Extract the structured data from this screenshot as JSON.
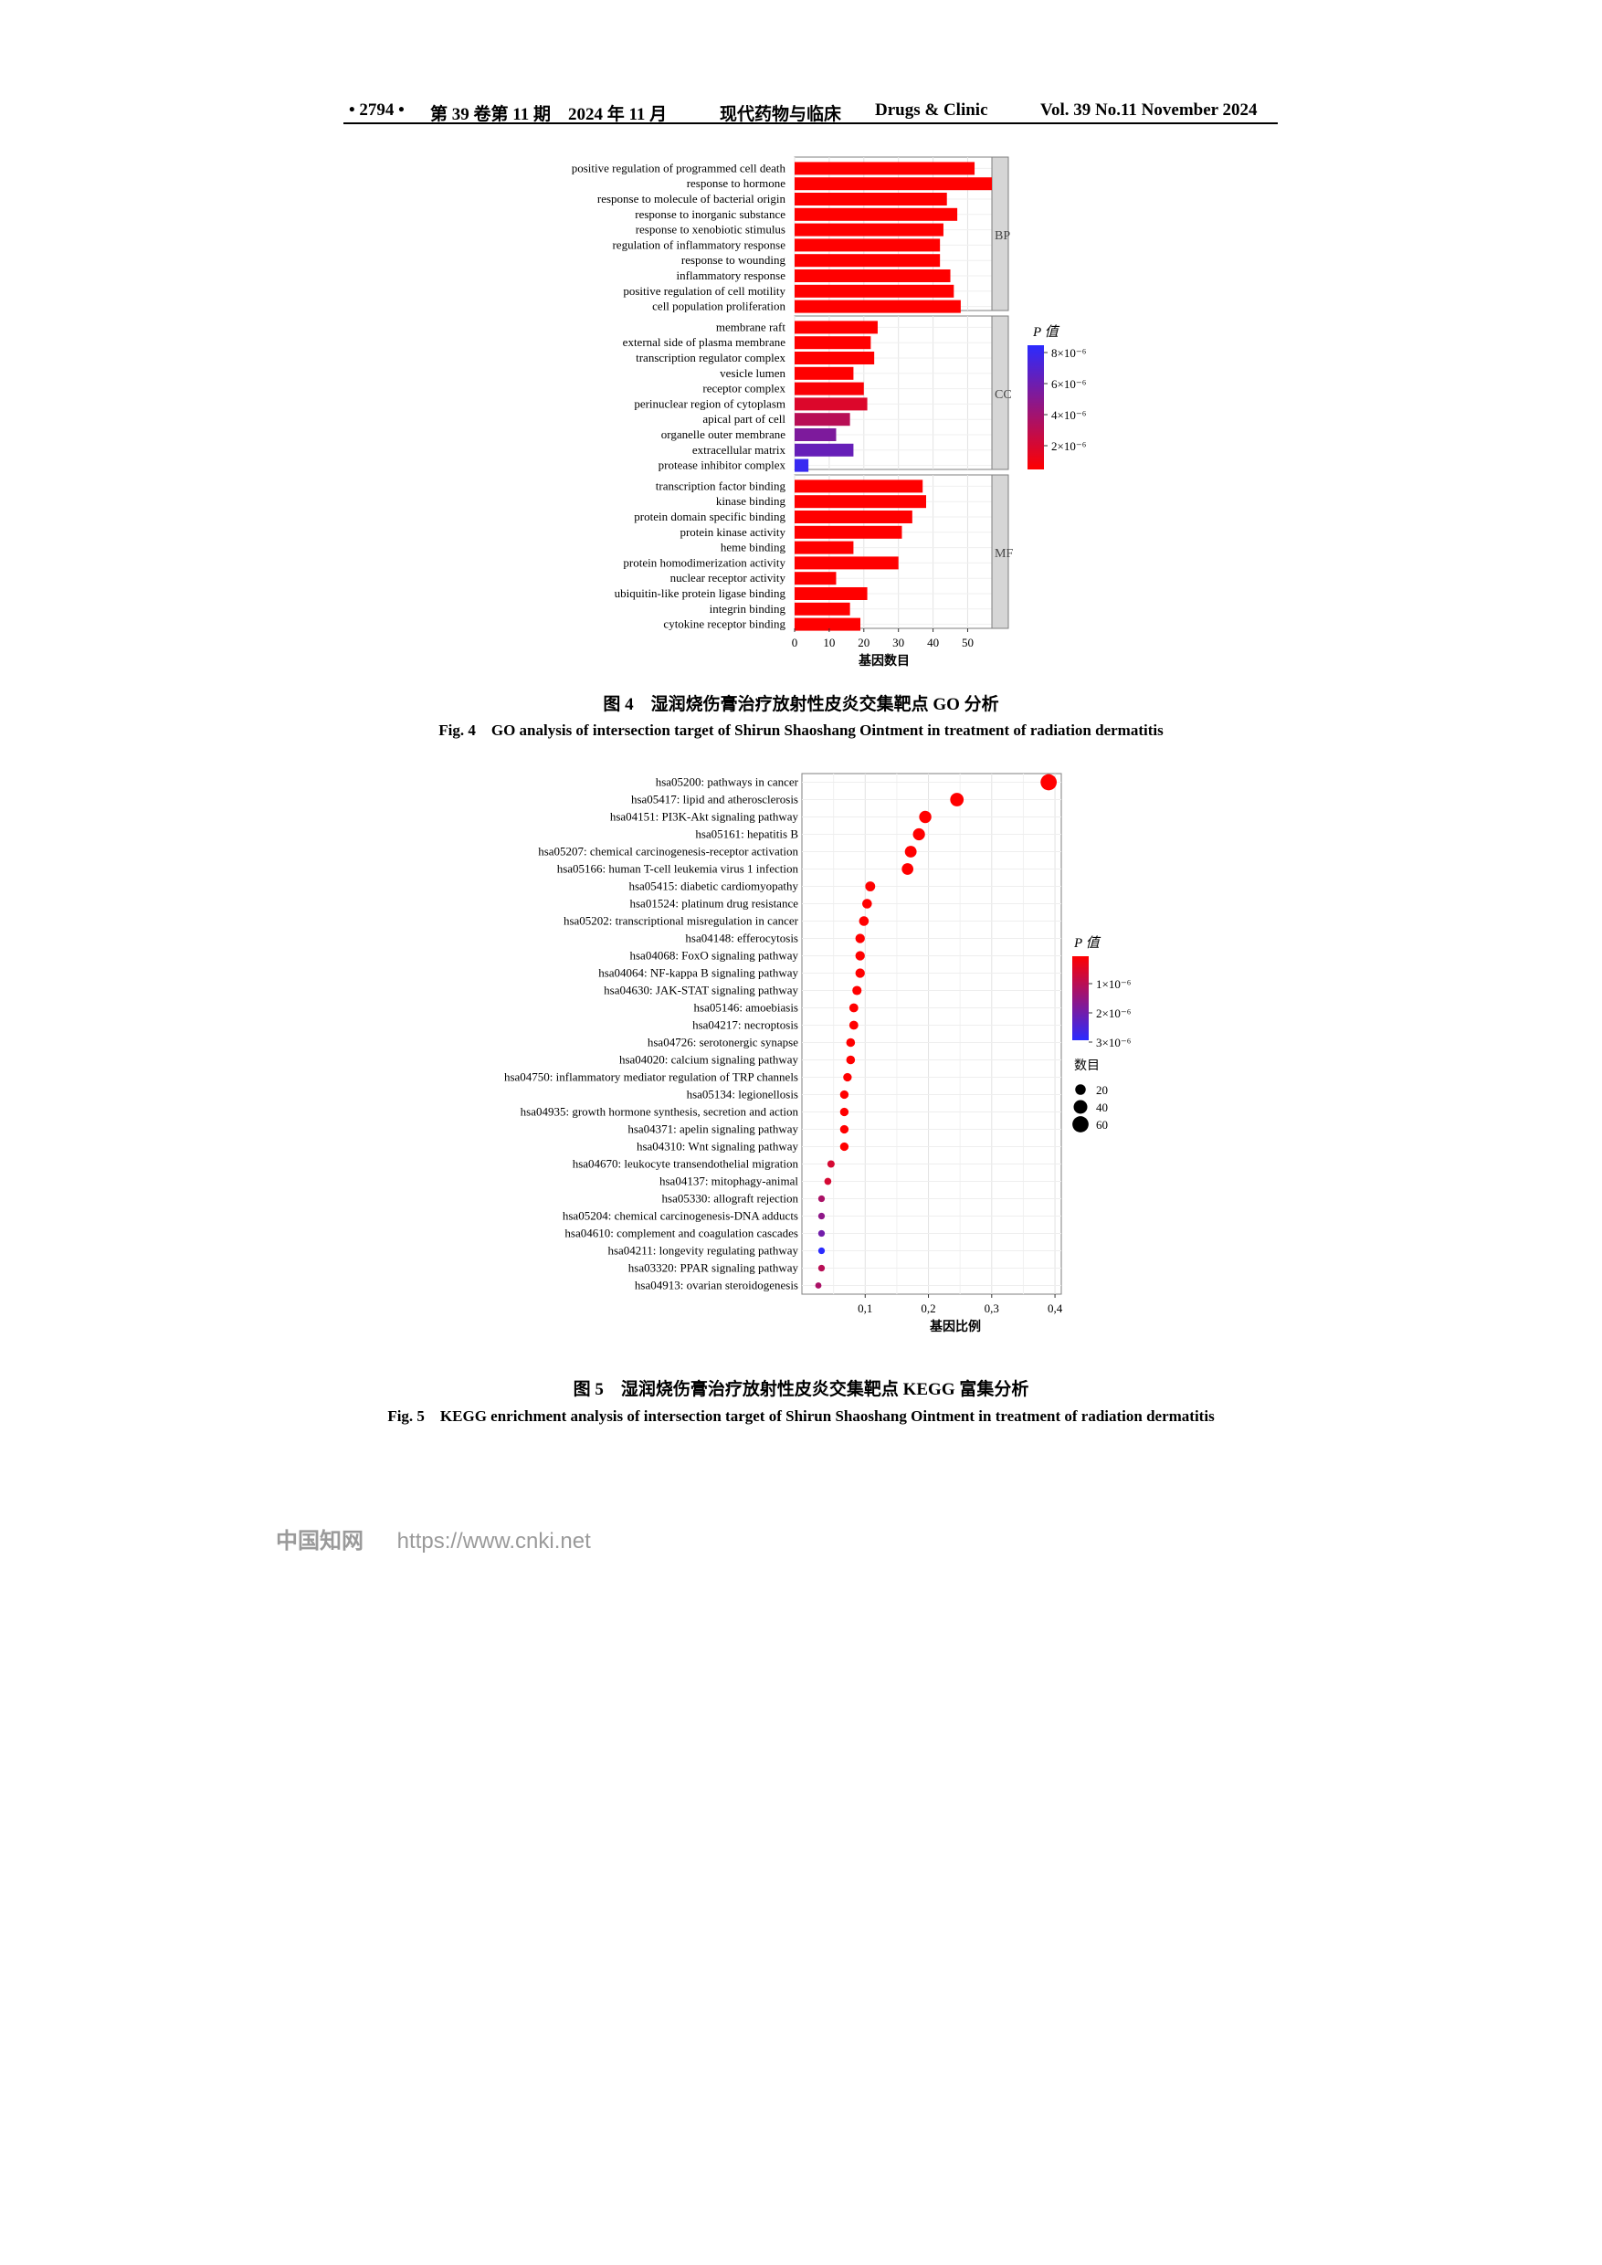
{
  "header": {
    "page": "• 2794 •",
    "issue_zh": "第 39 卷第 11 期　2024 年 11 月",
    "journal_zh": "现代药物与临床",
    "journal_en": "Drugs & Clinic",
    "issue_en": "Vol. 39 No.11 November 2024"
  },
  "figure4": {
    "caption_zh": "图 4　湿润烧伤膏治疗放射性皮炎交集靶点 GO 分析",
    "caption_en": "Fig. 4　GO analysis of intersection target of Shirun Shaoshang Ointment in treatment of radiation dermatitis"
  },
  "figure5": {
    "caption_zh": "图 5　湿润烧伤膏治疗放射性皮炎交集靶点 KEGG 富集分析",
    "caption_en": "Fig. 5　KEGG enrichment analysis of intersection target of Shirun Shaoshang Ointment in treatment of radiation dermatitis"
  },
  "footer": {
    "brand": "中国知网",
    "url": "https://www.cnki.net"
  },
  "chart_data": [
    {
      "type": "bar",
      "orientation": "horizontal",
      "xlabel": "基因数目",
      "xlim": [
        0,
        57
      ],
      "xticks": [
        0,
        10,
        20,
        30,
        40,
        50
      ],
      "grid": true,
      "legend": {
        "title": "P 值",
        "placement": "right",
        "ticks": [
          "8×10⁻⁶",
          "6×10⁻⁶",
          "4×10⁻⁶",
          "2×10⁻⁶"
        ]
      },
      "colors": {
        "low": "#ff0000",
        "high": "#2b2bff"
      },
      "facets": [
        {
          "name": "BP",
          "bars": [
            {
              "label": "positive regulation of programmed cell death",
              "value": 52,
              "p": 0
            },
            {
              "label": "response to hormone",
              "value": 57,
              "p": 0
            },
            {
              "label": "response to molecule of bacterial origin",
              "value": 44,
              "p": 0
            },
            {
              "label": "response to inorganic substance",
              "value": 47,
              "p": 0
            },
            {
              "label": "response to xenobiotic stimulus",
              "value": 43,
              "p": 0
            },
            {
              "label": "regulation of inflammatory response",
              "value": 42,
              "p": 0
            },
            {
              "label": "response to wounding",
              "value": 42,
              "p": 0
            },
            {
              "label": "inflammatory response",
              "value": 45,
              "p": 0
            },
            {
              "label": "positive regulation of cell motility",
              "value": 46,
              "p": 0
            },
            {
              "label": "cell population proliferation",
              "value": 48,
              "p": 0
            }
          ]
        },
        {
          "name": "CC",
          "bars": [
            {
              "label": "membrane raft",
              "value": 24,
              "p": 0.0
            },
            {
              "label": "external side of plasma membrane",
              "value": 22,
              "p": 0.0
            },
            {
              "label": "transcription regulator complex",
              "value": 23,
              "p": 0.0
            },
            {
              "label": "vesicle lumen",
              "value": 17,
              "p": 0.0
            },
            {
              "label": "receptor complex",
              "value": 20,
              "p": 2e-07
            },
            {
              "label": "perinuclear region of cytoplasm",
              "value": 21,
              "p": 1.5e-06
            },
            {
              "label": "apical part of cell",
              "value": 16,
              "p": 3e-06
            },
            {
              "label": "organelle outer membrane",
              "value": 12,
              "p": 5.5e-06
            },
            {
              "label": "extracellular matrix",
              "value": 17,
              "p": 6.5e-06
            },
            {
              "label": "protease inhibitor complex",
              "value": 4,
              "p": 8.5e-06
            }
          ]
        },
        {
          "name": "MF",
          "bars": [
            {
              "label": "transcription factor binding",
              "value": 37,
              "p": 0
            },
            {
              "label": "kinase binding",
              "value": 38,
              "p": 0
            },
            {
              "label": "protein domain specific binding",
              "value": 34,
              "p": 0
            },
            {
              "label": "protein kinase activity",
              "value": 31,
              "p": 0
            },
            {
              "label": "heme binding",
              "value": 17,
              "p": 0
            },
            {
              "label": "protein homodimerization activity",
              "value": 30,
              "p": 0
            },
            {
              "label": "nuclear receptor activity",
              "value": 12,
              "p": 0
            },
            {
              "label": "ubiquitin-like protein ligase binding",
              "value": 21,
              "p": 0
            },
            {
              "label": "integrin binding",
              "value": 16,
              "p": 0
            },
            {
              "label": "cytokine receptor binding",
              "value": 19,
              "p": 0
            }
          ]
        }
      ]
    },
    {
      "type": "scatter",
      "xlabel": "基因比例",
      "xlim": [
        0.0,
        0.41
      ],
      "xticks": [
        0.1,
        0.2,
        0.3,
        0.4
      ],
      "xtick_labels": [
        "0,1",
        "0,2",
        "0,3",
        "0,4"
      ],
      "grid": true,
      "legend": {
        "color_title": "P 值",
        "placement": "right",
        "color_ticks": [
          "1×10⁻⁶",
          "2×10⁻⁶",
          "3×10⁻⁶"
        ],
        "size_title": "数目",
        "size_ticks": [
          20,
          40,
          60
        ]
      },
      "colors": {
        "low": "#ff0000",
        "high": "#2b2bff"
      },
      "points": [
        {
          "label": "hsa05200: pathways in cancer",
          "x": 0.39,
          "count": 60,
          "p": 0
        },
        {
          "label": "hsa05417: lipid and atherosclerosis",
          "x": 0.245,
          "count": 38,
          "p": 0
        },
        {
          "label": "hsa04151: PI3K-Akt signaling pathway",
          "x": 0.195,
          "count": 30,
          "p": 0
        },
        {
          "label": "hsa05161: hepatitis B",
          "x": 0.185,
          "count": 29,
          "p": 0
        },
        {
          "label": "hsa05207: chemical carcinogenesis-receptor activation",
          "x": 0.172,
          "count": 27,
          "p": 0
        },
        {
          "label": "hsa05166: human T-cell leukemia virus 1 infection",
          "x": 0.167,
          "count": 26,
          "p": 0
        },
        {
          "label": "hsa05415: diabetic cardiomyopathy",
          "x": 0.108,
          "count": 17,
          "p": 0
        },
        {
          "label": "hsa01524: platinum drug resistance",
          "x": 0.103,
          "count": 16,
          "p": 0
        },
        {
          "label": "hsa05202: transcriptional misregulation in cancer",
          "x": 0.098,
          "count": 16,
          "p": 0
        },
        {
          "label": "hsa04148: efferocytosis",
          "x": 0.092,
          "count": 15,
          "p": 0
        },
        {
          "label": "hsa04068: FoxO signaling pathway",
          "x": 0.092,
          "count": 15,
          "p": 0
        },
        {
          "label": "hsa04064: NF-kappa B signaling pathway",
          "x": 0.092,
          "count": 15,
          "p": 0
        },
        {
          "label": "hsa04630: JAK-STAT signaling pathway",
          "x": 0.087,
          "count": 14,
          "p": 0
        },
        {
          "label": "hsa05146: amoebiasis",
          "x": 0.082,
          "count": 13,
          "p": 0
        },
        {
          "label": "hsa04217: necroptosis",
          "x": 0.082,
          "count": 13,
          "p": 0
        },
        {
          "label": "hsa04726: serotonergic synapse",
          "x": 0.077,
          "count": 12,
          "p": 0
        },
        {
          "label": "hsa04020: calcium signaling pathway",
          "x": 0.077,
          "count": 12,
          "p": 0
        },
        {
          "label": "hsa04750: inflammatory mediator regulation of TRP channels",
          "x": 0.072,
          "count": 11,
          "p": 0
        },
        {
          "label": "hsa05134: legionellosis",
          "x": 0.067,
          "count": 11,
          "p": 0
        },
        {
          "label": "hsa04935: growth hormone synthesis, secretion and action",
          "x": 0.067,
          "count": 11,
          "p": 0
        },
        {
          "label": "hsa04371: apelin signaling pathway",
          "x": 0.067,
          "count": 11,
          "p": 0
        },
        {
          "label": "hsa04310: Wnt signaling pathway",
          "x": 0.067,
          "count": 11,
          "p": 0
        },
        {
          "label": "hsa04670: leukocyte transendothelial migration",
          "x": 0.046,
          "count": 7,
          "p": 6e-07
        },
        {
          "label": "hsa04137: mitophagy-animal",
          "x": 0.041,
          "count": 6,
          "p": 6e-07
        },
        {
          "label": "hsa05330: allograft rejection",
          "x": 0.031,
          "count": 5,
          "p": 1.2e-06
        },
        {
          "label": "hsa05204: chemical carcinogenesis-DNA adducts",
          "x": 0.031,
          "count": 5,
          "p": 1.6e-06
        },
        {
          "label": "hsa04610: complement and coagulation cascades",
          "x": 0.031,
          "count": 5,
          "p": 2e-06
        },
        {
          "label": "hsa04211: longevity regulating pathway",
          "x": 0.031,
          "count": 5,
          "p": 3e-06
        },
        {
          "label": "hsa03320: PPAR signaling pathway",
          "x": 0.031,
          "count": 5,
          "p": 1e-06
        },
        {
          "label": "hsa04913: ovarian steroidogenesis",
          "x": 0.026,
          "count": 4,
          "p": 1.2e-06
        }
      ]
    }
  ]
}
